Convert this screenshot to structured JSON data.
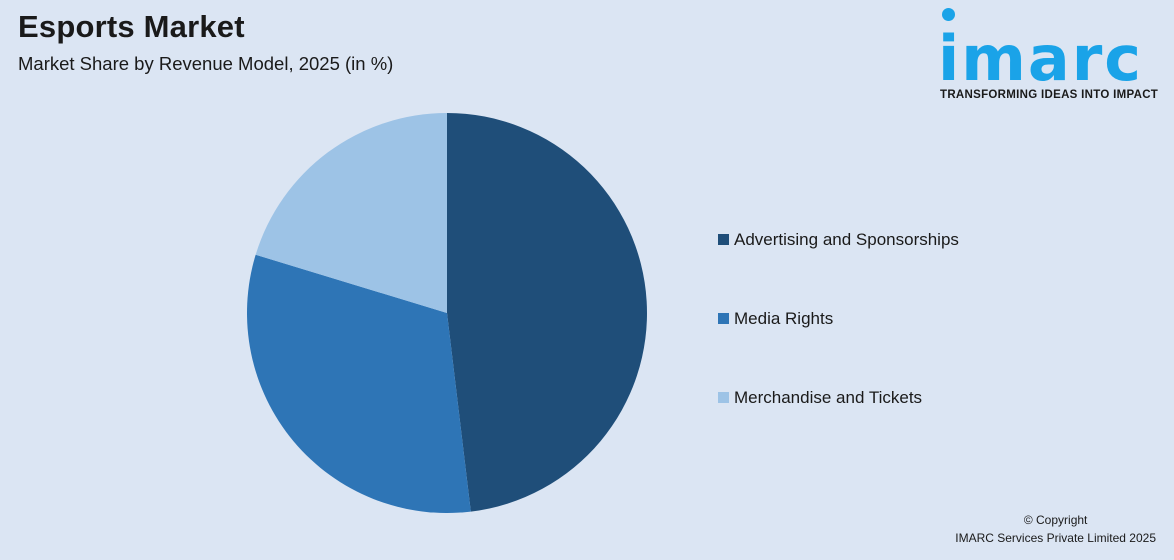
{
  "title": "Esports Market",
  "subtitle": "Market Share by Revenue Model, 2025 (in %)",
  "logo": {
    "text": "imarc",
    "tagline": "TRANSFORMING IDEAS INTO IMPACT",
    "color": "#1aa3e8"
  },
  "chart_data": {
    "type": "pie",
    "title": "Esports Market",
    "subtitle": "Market Share by Revenue Model, 2025 (in %)",
    "categories": [
      "Advertising and Sponsorships",
      "Media Rights",
      "Merchandise and Tickets"
    ],
    "values": [
      48.1,
      31.6,
      20.3
    ],
    "colors": [
      "#1f4e79",
      "#2e75b6",
      "#9dc3e6"
    ],
    "start": "12 o'clock, clockwise",
    "legend_position": "right"
  },
  "copyright": {
    "line1": "© Copyright",
    "line2": "IMARC Services Private Limited 2025"
  }
}
